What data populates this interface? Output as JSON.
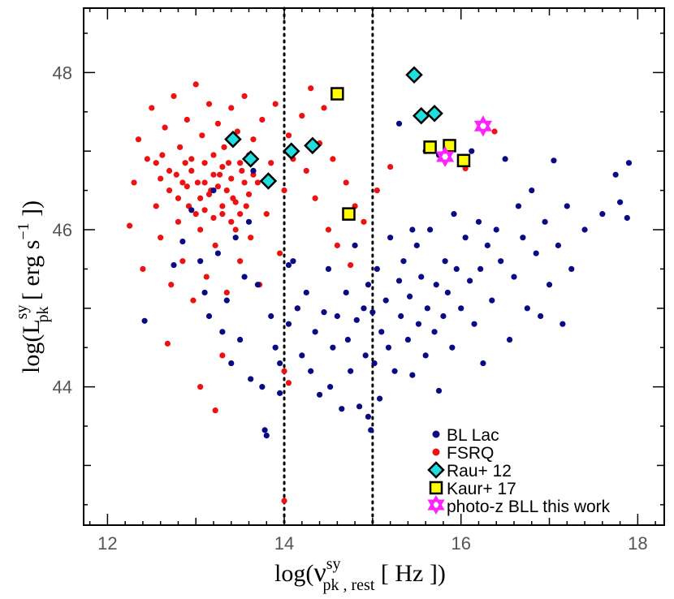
{
  "chart_data": {
    "type": "scatter",
    "title": "",
    "xlabel": {
      "base": "log(",
      "nu": "ν",
      "sup": "sy",
      "sub": "pk , rest",
      "unit": "  [ Hz ])"
    },
    "ylabel": {
      "base": "log(L",
      "sup": "sy",
      "sub": "pk",
      "unit": "  [ erg s",
      "exp": "−1",
      "close": " ])"
    },
    "xlim": [
      11.73,
      18.3
    ],
    "ylim": [
      42.24,
      48.82
    ],
    "xticks": [
      12,
      14,
      16,
      18
    ],
    "xtick_labels": [
      "12",
      "14",
      "16",
      "18"
    ],
    "yticks": [
      44,
      46,
      48
    ],
    "ytick_labels": [
      "44",
      "46",
      "48"
    ],
    "vlines": [
      14.0,
      15.0
    ],
    "legend_position": "bottom-right",
    "colors": {
      "bllac": "#0a0a85",
      "fsrq": "#ee1111",
      "rau": "#22dddd",
      "kaur": "#ffff00",
      "photoz": "#ff22ff"
    },
    "series": [
      {
        "name": "BL Lac",
        "marker": "dot",
        "color": "#0a0a85",
        "points": [
          [
            12.42,
            44.84
          ],
          [
            12.75,
            45.55
          ],
          [
            12.85,
            45.85
          ],
          [
            12.95,
            46.25
          ],
          [
            13.05,
            45.6
          ],
          [
            13.1,
            45.2
          ],
          [
            13.15,
            44.9
          ],
          [
            13.2,
            46.5
          ],
          [
            13.25,
            45.7
          ],
          [
            13.3,
            44.7
          ],
          [
            13.35,
            45.1
          ],
          [
            13.4,
            44.3
          ],
          [
            13.45,
            45.9
          ],
          [
            13.5,
            44.6
          ],
          [
            13.55,
            45.4
          ],
          [
            13.6,
            46.1
          ],
          [
            13.62,
            44.1
          ],
          [
            13.7,
            45.3
          ],
          [
            13.75,
            44.0
          ],
          [
            13.78,
            43.45
          ],
          [
            13.8,
            43.38
          ],
          [
            13.85,
            44.9
          ],
          [
            13.9,
            44.5
          ],
          [
            13.95,
            44.3
          ],
          [
            13.95,
            43.92
          ],
          [
            14.05,
            44.8
          ],
          [
            14.1,
            45.6
          ],
          [
            14.15,
            45.0
          ],
          [
            14.2,
            44.4
          ],
          [
            14.25,
            45.2
          ],
          [
            14.3,
            44.2
          ],
          [
            14.35,
            44.7
          ],
          [
            14.4,
            43.9
          ],
          [
            14.45,
            44.95
          ],
          [
            14.5,
            45.5
          ],
          [
            14.52,
            44.0
          ],
          [
            14.55,
            44.5
          ],
          [
            14.6,
            44.9
          ],
          [
            14.65,
            43.72
          ],
          [
            14.7,
            45.2
          ],
          [
            14.72,
            44.6
          ],
          [
            14.75,
            44.2
          ],
          [
            14.8,
            45.8
          ],
          [
            14.82,
            44.85
          ],
          [
            14.85,
            43.75
          ],
          [
            14.9,
            45.0
          ],
          [
            14.92,
            44.4
          ],
          [
            14.95,
            43.62
          ],
          [
            14.95,
            45.3
          ],
          [
            14.98,
            43.45
          ],
          [
            15.0,
            44.95
          ],
          [
            15.02,
            44.3
          ],
          [
            15.05,
            45.5
          ],
          [
            15.08,
            43.85
          ],
          [
            15.1,
            44.7
          ],
          [
            15.15,
            45.1
          ],
          [
            15.18,
            44.5
          ],
          [
            15.2,
            45.9
          ],
          [
            15.25,
            44.2
          ],
          [
            15.3,
            45.35
          ],
          [
            15.32,
            44.9
          ],
          [
            15.35,
            45.6
          ],
          [
            15.4,
            44.6
          ],
          [
            15.42,
            45.15
          ],
          [
            15.45,
            44.15
          ],
          [
            15.5,
            45.8
          ],
          [
            15.52,
            44.8
          ],
          [
            15.55,
            45.4
          ],
          [
            15.6,
            44.4
          ],
          [
            15.62,
            45.0
          ],
          [
            15.65,
            46.0
          ],
          [
            15.7,
            44.7
          ],
          [
            15.72,
            45.3
          ],
          [
            15.75,
            43.95
          ],
          [
            15.8,
            44.9
          ],
          [
            15.82,
            45.6
          ],
          [
            15.85,
            45.2
          ],
          [
            15.9,
            44.5
          ],
          [
            15.92,
            46.2
          ],
          [
            15.95,
            45.5
          ],
          [
            16.0,
            45.0
          ],
          [
            16.05,
            45.9
          ],
          [
            16.1,
            45.35
          ],
          [
            16.15,
            44.8
          ],
          [
            16.2,
            46.1
          ],
          [
            16.22,
            45.5
          ],
          [
            16.25,
            44.3
          ],
          [
            16.3,
            45.8
          ],
          [
            16.35,
            45.1
          ],
          [
            16.4,
            46.0
          ],
          [
            16.45,
            45.6
          ],
          [
            16.5,
            46.9
          ],
          [
            16.55,
            44.6
          ],
          [
            16.6,
            45.4
          ],
          [
            16.65,
            46.3
          ],
          [
            16.7,
            45.9
          ],
          [
            16.75,
            45.0
          ],
          [
            16.8,
            46.5
          ],
          [
            16.85,
            45.7
          ],
          [
            16.9,
            44.9
          ],
          [
            16.95,
            46.1
          ],
          [
            17.0,
            45.3
          ],
          [
            17.05,
            46.88
          ],
          [
            17.1,
            45.8
          ],
          [
            17.15,
            44.8
          ],
          [
            17.2,
            46.3
          ],
          [
            17.25,
            45.5
          ],
          [
            17.4,
            46.0
          ],
          [
            17.6,
            46.2
          ],
          [
            17.75,
            46.7
          ],
          [
            17.8,
            46.35
          ],
          [
            17.88,
            46.15
          ],
          [
            17.9,
            46.85
          ],
          [
            13.65,
            46.75
          ],
          [
            14.05,
            45.55
          ],
          [
            15.45,
            46.0
          ],
          [
            15.6,
            47.0
          ],
          [
            15.75,
            46.95
          ],
          [
            16.12,
            47.0
          ],
          [
            15.3,
            47.35
          ]
        ]
      },
      {
        "name": "FSRQ",
        "marker": "dot",
        "color": "#ee1111",
        "points": [
          [
            12.25,
            46.05
          ],
          [
            12.3,
            46.6
          ],
          [
            12.35,
            47.15
          ],
          [
            12.4,
            45.5
          ],
          [
            12.45,
            46.9
          ],
          [
            12.5,
            47.55
          ],
          [
            12.55,
            46.3
          ],
          [
            12.6,
            45.9
          ],
          [
            12.62,
            46.95
          ],
          [
            12.65,
            47.3
          ],
          [
            12.68,
            44.55
          ],
          [
            12.7,
            46.5
          ],
          [
            12.72,
            45.3
          ],
          [
            12.75,
            47.7
          ],
          [
            12.78,
            46.7
          ],
          [
            12.8,
            46.1
          ],
          [
            12.82,
            47.05
          ],
          [
            12.85,
            45.6
          ],
          [
            12.88,
            46.85
          ],
          [
            12.9,
            47.4
          ],
          [
            12.92,
            46.3
          ],
          [
            12.95,
            46.75
          ],
          [
            12.97,
            45.1
          ],
          [
            13.0,
            47.85
          ],
          [
            13.02,
            46.6
          ],
          [
            13.05,
            46.0
          ],
          [
            13.07,
            47.2
          ],
          [
            13.1,
            46.85
          ],
          [
            13.12,
            45.4
          ],
          [
            13.15,
            47.6
          ],
          [
            13.17,
            46.5
          ],
          [
            13.2,
            46.95
          ],
          [
            13.22,
            45.8
          ],
          [
            13.25,
            47.35
          ],
          [
            13.27,
            46.7
          ],
          [
            13.3,
            46.2
          ],
          [
            13.32,
            47.05
          ],
          [
            13.35,
            45.2
          ],
          [
            13.37,
            46.85
          ],
          [
            13.4,
            47.55
          ],
          [
            13.42,
            46.4
          ],
          [
            13.45,
            46.0
          ],
          [
            13.47,
            47.25
          ],
          [
            13.5,
            45.6
          ],
          [
            13.52,
            46.75
          ],
          [
            13.55,
            47.7
          ],
          [
            13.57,
            46.3
          ],
          [
            13.6,
            46.95
          ],
          [
            13.62,
            45.9
          ],
          [
            13.65,
            47.15
          ],
          [
            13.7,
            46.6
          ],
          [
            13.72,
            45.3
          ],
          [
            13.75,
            47.4
          ],
          [
            13.8,
            46.2
          ],
          [
            13.85,
            46.85
          ],
          [
            13.9,
            47.6
          ],
          [
            13.95,
            45.7
          ],
          [
            14.0,
            46.5
          ],
          [
            14.05,
            47.2
          ],
          [
            14.1,
            46.9
          ],
          [
            14.15,
            45.0
          ],
          [
            14.2,
            47.45
          ],
          [
            14.25,
            46.75
          ],
          [
            14.3,
            47.8
          ],
          [
            14.35,
            46.4
          ],
          [
            14.4,
            47.1
          ],
          [
            14.45,
            47.55
          ],
          [
            14.5,
            46.0
          ],
          [
            14.55,
            46.9
          ],
          [
            14.6,
            45.8
          ],
          [
            14.7,
            46.6
          ],
          [
            14.75,
            45.55
          ],
          [
            14.8,
            46.3
          ],
          [
            14.9,
            46.1
          ],
          [
            12.85,
            46.6
          ],
          [
            12.9,
            46.55
          ],
          [
            12.95,
            46.9
          ],
          [
            13.05,
            46.4
          ],
          [
            13.1,
            46.6
          ],
          [
            13.15,
            46.45
          ],
          [
            13.2,
            46.7
          ],
          [
            13.25,
            46.55
          ],
          [
            13.3,
            46.8
          ],
          [
            13.35,
            46.5
          ],
          [
            13.4,
            46.65
          ],
          [
            13.45,
            46.35
          ],
          [
            13.5,
            46.85
          ],
          [
            13.55,
            46.6
          ],
          [
            13.6,
            46.45
          ],
          [
            13.65,
            46.7
          ],
          [
            13.0,
            46.2
          ],
          [
            13.1,
            46.25
          ],
          [
            13.2,
            46.15
          ],
          [
            13.3,
            46.3
          ],
          [
            13.4,
            46.1
          ],
          [
            13.5,
            46.2
          ],
          [
            12.8,
            46.4
          ],
          [
            12.7,
            46.75
          ],
          [
            12.6,
            46.65
          ],
          [
            12.55,
            46.85
          ],
          [
            13.22,
            43.7
          ],
          [
            14.0,
            42.55
          ],
          [
            14.0,
            44.2
          ],
          [
            14.05,
            44.05
          ],
          [
            15.2,
            46.8
          ],
          [
            16.05,
            46.78
          ],
          [
            16.38,
            47.25
          ],
          [
            15.05,
            46.5
          ],
          [
            13.05,
            44.0
          ],
          [
            13.3,
            44.4
          ]
        ]
      },
      {
        "name": "Rau+ 12",
        "marker": "diamond",
        "color": "#22dddd",
        "points": [
          [
            13.42,
            47.15
          ],
          [
            13.62,
            46.9
          ],
          [
            13.82,
            46.62
          ],
          [
            14.08,
            47.0
          ],
          [
            14.32,
            47.07
          ],
          [
            15.47,
            47.97
          ],
          [
            15.55,
            47.45
          ],
          [
            15.7,
            47.48
          ]
        ]
      },
      {
        "name": "Kaur+ 17",
        "marker": "square",
        "color": "#ffff00",
        "points": [
          [
            14.6,
            47.73
          ],
          [
            14.73,
            46.2
          ],
          [
            15.65,
            47.05
          ],
          [
            15.87,
            47.07
          ],
          [
            16.03,
            46.88
          ]
        ]
      },
      {
        "name": "photo-z BLL this work",
        "marker": "hexagram",
        "color": "#ff22ff",
        "points": [
          [
            15.82,
            46.93
          ],
          [
            16.25,
            47.32
          ]
        ]
      }
    ]
  }
}
